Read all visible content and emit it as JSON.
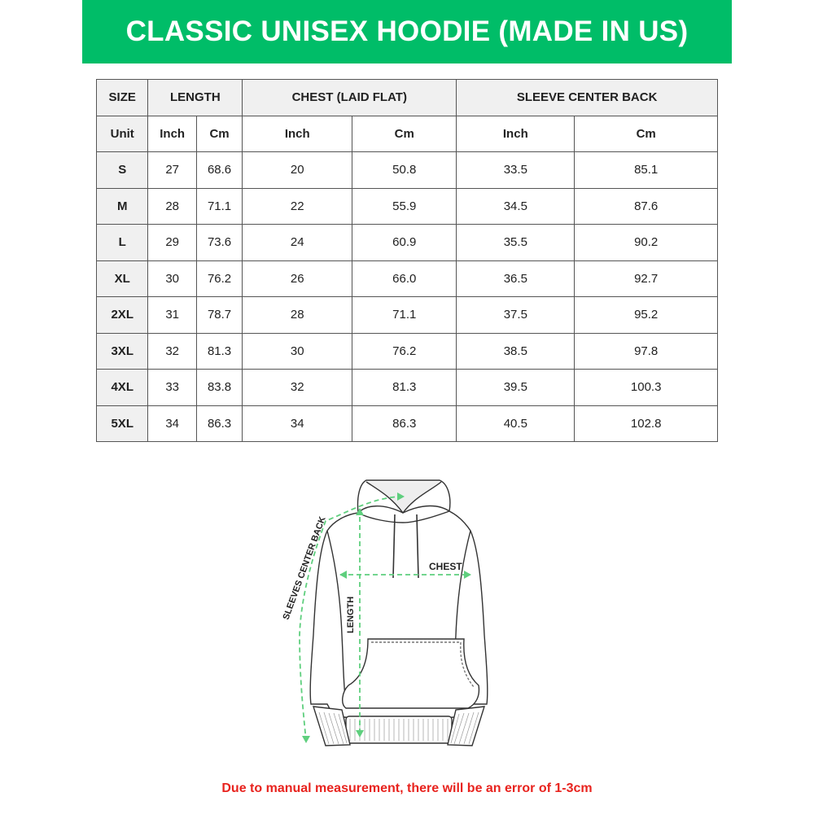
{
  "title": "CLASSIC UNISEX HOODIE (MADE IN US)",
  "accent_color": "#00bd68",
  "table": {
    "group_headers": [
      "SIZE",
      "LENGTH",
      "CHEST (LAID FLAT)",
      "SLEEVE CENTER BACK"
    ],
    "unit_row": [
      "Unit",
      "Inch",
      "Cm",
      "Inch",
      "Cm",
      "Inch",
      "Cm"
    ],
    "rows": [
      [
        "S",
        "27",
        "68.6",
        "20",
        "50.8",
        "33.5",
        "85.1"
      ],
      [
        "M",
        "28",
        "71.1",
        "22",
        "55.9",
        "34.5",
        "87.6"
      ],
      [
        "L",
        "29",
        "73.6",
        "24",
        "60.9",
        "35.5",
        "90.2"
      ],
      [
        "XL",
        "30",
        "76.2",
        "26",
        "66.0",
        "36.5",
        "92.7"
      ],
      [
        "2XL",
        "31",
        "78.7",
        "28",
        "71.1",
        "37.5",
        "95.2"
      ],
      [
        "3XL",
        "32",
        "81.3",
        "30",
        "76.2",
        "38.5",
        "97.8"
      ],
      [
        "4XL",
        "33",
        "83.8",
        "32",
        "81.3",
        "39.5",
        "100.3"
      ],
      [
        "5XL",
        "34",
        "86.3",
        "34",
        "86.3",
        "40.5",
        "102.8"
      ]
    ]
  },
  "diagram": {
    "chest_label": "CHEST",
    "length_label": "LENGTH",
    "sleeve_label": "SLEEVES CENTER BACK"
  },
  "note": "Due to manual measurement, there will be an error of 1-3cm",
  "note_color": "#e8231e"
}
